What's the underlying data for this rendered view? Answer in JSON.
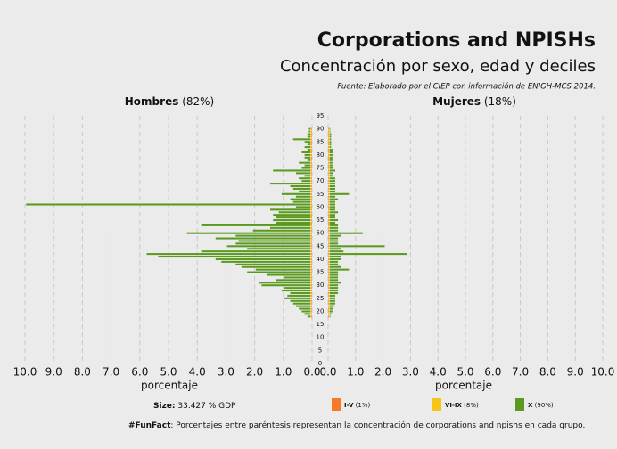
{
  "chart_data": {
    "type": "pyramid",
    "title": "Corporations and NPISHs",
    "subtitle": "Concentración por sexo, edad y deciles",
    "source": "Fuente: Elaborado por el CIEP con información de ENIGH-MCS 2014.",
    "left_group": {
      "name": "Hombres",
      "share": "(82%)"
    },
    "right_group": {
      "name": "Mujeres",
      "share": "(18%)"
    },
    "x_label_left": "porcentaje",
    "x_label_right": "porcentaje",
    "size_note": {
      "label": "Size:",
      "text": "33.427 % GDP"
    },
    "fun_fact": {
      "label": "#FunFact",
      "text": ": Porcentajes entre paréntesis representan la concentración de corporations and npishs en cada grupo."
    },
    "categories": [
      18,
      19,
      20,
      21,
      22,
      23,
      24,
      25,
      26,
      27,
      28,
      29,
      30,
      31,
      32,
      33,
      34,
      35,
      36,
      37,
      38,
      39,
      40,
      41,
      42,
      43,
      44,
      45,
      46,
      47,
      48,
      49,
      50,
      51,
      52,
      53,
      54,
      55,
      56,
      57,
      58,
      59,
      60,
      61,
      62,
      63,
      64,
      65,
      66,
      67,
      68,
      69,
      70,
      71,
      72,
      73,
      74,
      75,
      76,
      77,
      78,
      79,
      80,
      81,
      82,
      83,
      84,
      85,
      86,
      87,
      88,
      89,
      90
    ],
    "ylim": [
      0,
      95
    ],
    "yticks": [
      0,
      5,
      10,
      15,
      20,
      25,
      30,
      35,
      40,
      45,
      50,
      55,
      60,
      65,
      70,
      75,
      80,
      85,
      90,
      95
    ],
    "xlim": [
      0,
      10
    ],
    "xticks": [
      {
        "value": 0,
        "label": "0.0"
      },
      {
        "value": 1,
        "label": "1.0"
      },
      {
        "value": 2,
        "label": "2.0"
      },
      {
        "value": 3,
        "label": "3.0"
      },
      {
        "value": 4,
        "label": "4.0"
      },
      {
        "value": 5,
        "label": "5.0"
      },
      {
        "value": 6,
        "label": "6.0"
      },
      {
        "value": 7,
        "label": "7.0"
      },
      {
        "value": 8,
        "label": "8.0"
      },
      {
        "value": 9,
        "label": "9.0"
      },
      {
        "value": 10,
        "label": "10.0"
      }
    ],
    "grid": true,
    "series": [
      {
        "name": "I-V",
        "share": "(1%)",
        "color": "#f47a2a",
        "left": [
          0.02,
          0.02,
          0.02,
          0.02,
          0.02,
          0.02,
          0.02,
          0.02,
          0.02,
          0.02,
          0.02,
          0.02,
          0.02,
          0.02,
          0.02,
          0.02,
          0.02,
          0.02,
          0.02,
          0.02,
          0.02,
          0.02,
          0.02,
          0.02,
          0.02,
          0.02,
          0.02,
          0.02,
          0.02,
          0.02,
          0.02,
          0.02,
          0.02,
          0.02,
          0.02,
          0.02,
          0.02,
          0.02,
          0.02,
          0.02,
          0.02,
          0.02,
          0.02,
          0.02,
          0.02,
          0.02,
          0.02,
          0.02,
          0.02,
          0.02,
          0.02,
          0.02,
          0.02,
          0.02,
          0.02,
          0.02,
          0.02,
          0.02,
          0.02,
          0.02,
          0.02,
          0.02,
          0.02,
          0.02,
          0.02,
          0.02,
          0.02,
          0.02,
          0.02,
          0.02,
          0.02,
          0.02,
          0.02
        ],
        "right": [
          0.02,
          0.02,
          0.02,
          0.02,
          0.02,
          0.02,
          0.02,
          0.02,
          0.02,
          0.02,
          0.02,
          0.02,
          0.02,
          0.02,
          0.02,
          0.02,
          0.02,
          0.02,
          0.02,
          0.02,
          0.02,
          0.02,
          0.02,
          0.02,
          0.02,
          0.02,
          0.02,
          0.02,
          0.02,
          0.02,
          0.02,
          0.02,
          0.02,
          0.02,
          0.02,
          0.02,
          0.02,
          0.02,
          0.02,
          0.02,
          0.02,
          0.02,
          0.02,
          0.02,
          0.02,
          0.02,
          0.02,
          0.02,
          0.02,
          0.02,
          0.02,
          0.02,
          0.02,
          0.02,
          0.02,
          0.02,
          0.02,
          0.02,
          0.02,
          0.02,
          0.02,
          0.02,
          0.02,
          0.02,
          0.02,
          0.02,
          0.02,
          0.02,
          0.02,
          0.02,
          0.02,
          0.02,
          0.02
        ]
      },
      {
        "name": "VI-IX",
        "share": "(8%)",
        "color": "#f5c518",
        "left": [
          0.04,
          0.04,
          0.04,
          0.04,
          0.04,
          0.04,
          0.04,
          0.04,
          0.04,
          0.04,
          0.04,
          0.04,
          0.04,
          0.04,
          0.04,
          0.04,
          0.04,
          0.04,
          0.04,
          0.04,
          0.04,
          0.04,
          0.04,
          0.04,
          0.04,
          0.04,
          0.04,
          0.04,
          0.04,
          0.04,
          0.04,
          0.04,
          0.04,
          0.04,
          0.04,
          0.04,
          0.04,
          0.04,
          0.04,
          0.04,
          0.04,
          0.04,
          0.04,
          0.04,
          0.04,
          0.04,
          0.04,
          0.04,
          0.04,
          0.04,
          0.04,
          0.04,
          0.04,
          0.04,
          0.04,
          0.04,
          0.04,
          0.04,
          0.04,
          0.04,
          0.04,
          0.04,
          0.04,
          0.04,
          0.04,
          0.04,
          0.04,
          0.04,
          0.04,
          0.04,
          0.04,
          0.04,
          0.04
        ],
        "right": [
          0.04,
          0.04,
          0.04,
          0.04,
          0.04,
          0.04,
          0.04,
          0.04,
          0.04,
          0.04,
          0.04,
          0.04,
          0.04,
          0.04,
          0.04,
          0.04,
          0.04,
          0.04,
          0.04,
          0.04,
          0.04,
          0.04,
          0.04,
          0.04,
          0.04,
          0.04,
          0.04,
          0.04,
          0.04,
          0.04,
          0.04,
          0.04,
          0.04,
          0.04,
          0.04,
          0.04,
          0.04,
          0.04,
          0.04,
          0.04,
          0.04,
          0.04,
          0.04,
          0.04,
          0.04,
          0.04,
          0.04,
          0.04,
          0.04,
          0.04,
          0.04,
          0.04,
          0.04,
          0.04,
          0.04,
          0.04,
          0.04,
          0.04,
          0.04,
          0.04,
          0.04,
          0.04,
          0.04,
          0.04,
          0.04,
          0.04,
          0.04,
          0.04,
          0.04,
          0.04,
          0.04,
          0.04,
          0.04
        ]
      },
      {
        "name": "X",
        "share": "(90%)",
        "color": "#5a9a1e",
        "left": [
          0.1,
          0.2,
          0.3,
          0.4,
          0.5,
          0.6,
          0.7,
          0.9,
          0.8,
          0.7,
          1.0,
          0.9,
          1.7,
          1.8,
          1.2,
          0.9,
          1.5,
          2.2,
          1.9,
          2.4,
          2.6,
          3.1,
          3.3,
          5.3,
          5.7,
          3.8,
          2.2,
          2.9,
          2.6,
          2.5,
          3.3,
          2.6,
          4.3,
          2.0,
          1.4,
          3.8,
          1.2,
          1.3,
          1.2,
          1.3,
          1.1,
          1.4,
          0.5,
          9.9,
          0.6,
          0.7,
          0.5,
          1.0,
          0.4,
          0.6,
          0.7,
          1.4,
          0.3,
          0.4,
          0.2,
          0.5,
          1.3,
          0.3,
          0.2,
          0.4,
          0.1,
          0.2,
          0.2,
          0.3,
          0.1,
          0.2,
          0.1,
          0.2,
          0.6,
          0.1,
          0.1,
          0.05,
          0.05
        ],
        "right": [
          0.02,
          0.05,
          0.1,
          0.1,
          0.15,
          0.2,
          0.2,
          0.2,
          0.2,
          0.3,
          0.3,
          0.3,
          0.3,
          0.4,
          0.3,
          0.3,
          0.3,
          0.3,
          0.7,
          0.4,
          0.3,
          0.3,
          0.4,
          0.4,
          2.8,
          0.5,
          0.4,
          2.0,
          0.3,
          0.3,
          0.3,
          0.4,
          1.2,
          0.3,
          0.3,
          0.3,
          0.2,
          0.3,
          0.2,
          0.2,
          0.3,
          0.2,
          0.2,
          0.2,
          0.2,
          0.3,
          0.2,
          0.7,
          0.2,
          0.2,
          0.2,
          0.2,
          0.2,
          0.2,
          0.1,
          0.1,
          0.2,
          0.1,
          0.1,
          0.1,
          0.1,
          0.1,
          0.1,
          0.1,
          0.1,
          0.05,
          0.05,
          0.05,
          0.05,
          0.05,
          0.05,
          0.02,
          0.02
        ]
      }
    ]
  }
}
